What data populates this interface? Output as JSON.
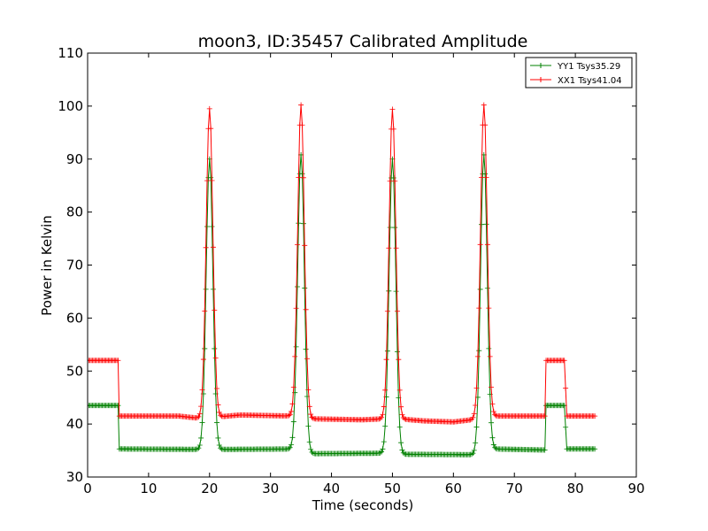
{
  "chart_data": {
    "type": "line",
    "title": "moon3, ID:35457 Calibrated Amplitude",
    "xlabel": "Time (seconds)",
    "ylabel": "Power in Kelvin",
    "xlim": [
      0,
      90
    ],
    "ylim": [
      30,
      110
    ],
    "xticks": [
      "0",
      "10",
      "20",
      "30",
      "40",
      "50",
      "60",
      "70",
      "80",
      "90"
    ],
    "yticks": [
      "30",
      "40",
      "50",
      "60",
      "70",
      "80",
      "90",
      "100",
      "110"
    ],
    "grid": false,
    "legend_position": "top-right",
    "marker": "plus",
    "series": [
      {
        "name": "YY1 Tsys35.29",
        "color": "#008000",
        "base": [
          [
            0,
            43.5
          ],
          [
            5,
            43.5
          ],
          [
            5.2,
            35.3
          ],
          [
            20,
            35.2
          ],
          [
            35,
            35.3
          ],
          [
            36,
            34.4
          ],
          [
            50,
            34.5
          ],
          [
            51,
            34.3
          ],
          [
            65,
            34.2
          ],
          [
            66.5,
            35.3
          ],
          [
            75,
            35.1
          ],
          [
            75.2,
            43.5
          ],
          [
            78.3,
            43.5
          ],
          [
            78.5,
            35.3
          ],
          [
            83,
            35.3
          ]
        ],
        "peaks": [
          [
            20,
            90
          ],
          [
            35,
            90.8
          ],
          [
            50,
            90
          ],
          [
            65,
            90.8
          ]
        ]
      },
      {
        "name": "XX1 Tsys41.04",
        "color": "#ff0000",
        "base": [
          [
            0,
            52
          ],
          [
            5,
            52
          ],
          [
            5.2,
            41.5
          ],
          [
            15,
            41.5
          ],
          [
            19,
            41
          ],
          [
            21,
            41.3
          ],
          [
            25,
            41.7
          ],
          [
            34,
            41.5
          ],
          [
            35,
            41.3
          ],
          [
            36,
            41
          ],
          [
            45,
            40.8
          ],
          [
            49,
            41
          ],
          [
            51,
            41
          ],
          [
            55,
            40.6
          ],
          [
            60,
            40.4
          ],
          [
            63,
            40.8
          ],
          [
            64,
            41.5
          ],
          [
            75,
            41.5
          ],
          [
            75.2,
            52
          ],
          [
            78.3,
            52
          ],
          [
            78.5,
            41.5
          ],
          [
            83,
            41.5
          ]
        ],
        "peaks": [
          [
            20,
            99.5
          ],
          [
            35,
            100.2
          ],
          [
            50,
            99.4
          ],
          [
            65,
            100.2
          ]
        ]
      }
    ]
  }
}
